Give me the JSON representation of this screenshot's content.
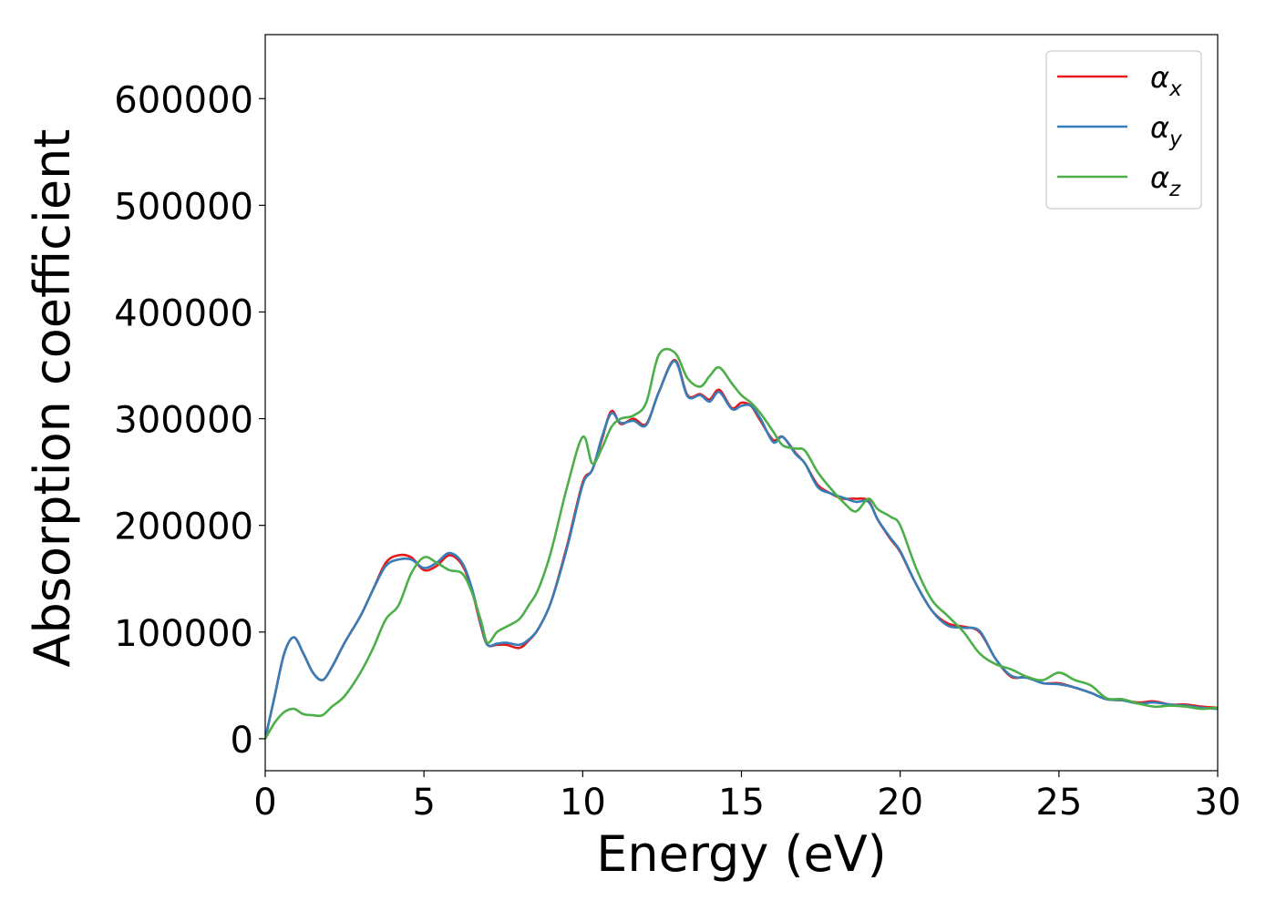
{
  "chart_data": {
    "type": "line",
    "xlabel": "Energy (eV)",
    "ylabel": "Absorption coefficient",
    "xlim": [
      0,
      30
    ],
    "ylim": [
      -30000,
      660000
    ],
    "xticks": [
      0,
      5,
      10,
      15,
      20,
      25,
      30
    ],
    "xtick_labels": [
      "0",
      "5",
      "10",
      "15",
      "20",
      "25",
      "30"
    ],
    "yticks": [
      0,
      100000,
      200000,
      300000,
      400000,
      500000,
      600000
    ],
    "ytick_labels": [
      "0",
      "100000",
      "200000",
      "300000",
      "400000",
      "500000",
      "600000"
    ],
    "grid": false,
    "legend_position": "top-right",
    "series": [
      {
        "name": "αx",
        "name_base": "α",
        "name_sub": "x",
        "color": "#e41a1c",
        "x": [
          0,
          0.3,
          0.6,
          0.9,
          1.2,
          1.5,
          1.8,
          2.1,
          2.5,
          3.0,
          3.4,
          3.8,
          4.2,
          4.6,
          5.0,
          5.4,
          5.8,
          6.2,
          6.5,
          6.8,
          7.0,
          7.3,
          7.6,
          8.0,
          8.3,
          8.6,
          9.0,
          9.5,
          10.0,
          10.3,
          10.6,
          10.9,
          11.2,
          11.6,
          12.0,
          12.4,
          12.9,
          13.3,
          13.7,
          14.0,
          14.3,
          14.7,
          15.0,
          15.3,
          15.6,
          16.0,
          16.3,
          16.7,
          17.0,
          17.4,
          17.8,
          18.2,
          18.6,
          19.0,
          19.3,
          19.7,
          20.0,
          20.5,
          21.0,
          21.5,
          22.0,
          22.5,
          23.0,
          23.5,
          24.0,
          24.5,
          25.0,
          25.5,
          26.0,
          26.5,
          27.0,
          27.5,
          28.0,
          28.5,
          29.0,
          29.5,
          30.0
        ],
        "y": [
          0,
          40000,
          80000,
          95000,
          80000,
          62000,
          55000,
          67000,
          90000,
          115000,
          140000,
          165000,
          172000,
          170000,
          158000,
          162000,
          172000,
          163000,
          140000,
          105000,
          88000,
          88000,
          88000,
          85000,
          92000,
          103000,
          128000,
          180000,
          240000,
          252000,
          280000,
          307000,
          295000,
          300000,
          295000,
          325000,
          355000,
          322000,
          323000,
          318000,
          327000,
          310000,
          315000,
          312000,
          298000,
          280000,
          283000,
          268000,
          258000,
          238000,
          230000,
          225000,
          225000,
          223000,
          205000,
          187000,
          175000,
          145000,
          120000,
          108000,
          105000,
          100000,
          75000,
          58000,
          58000,
          52000,
          52000,
          48000,
          43000,
          37000,
          36000,
          34000,
          35000,
          32000,
          32000,
          30000,
          29000
        ]
      },
      {
        "name": "αy",
        "name_base": "α",
        "name_sub": "y",
        "color": "#377eb8",
        "x": [
          0,
          0.3,
          0.6,
          0.9,
          1.2,
          1.5,
          1.8,
          2.1,
          2.5,
          3.0,
          3.4,
          3.8,
          4.2,
          4.6,
          5.0,
          5.4,
          5.8,
          6.2,
          6.5,
          6.8,
          7.0,
          7.3,
          7.6,
          8.0,
          8.3,
          8.6,
          9.0,
          9.5,
          10.0,
          10.3,
          10.6,
          10.9,
          11.2,
          11.6,
          12.0,
          12.4,
          12.9,
          13.3,
          13.7,
          14.0,
          14.3,
          14.7,
          15.0,
          15.3,
          15.6,
          16.0,
          16.3,
          16.7,
          17.0,
          17.4,
          17.8,
          18.2,
          18.6,
          19.0,
          19.3,
          19.7,
          20.0,
          20.5,
          21.0,
          21.5,
          22.0,
          22.5,
          23.0,
          23.5,
          24.0,
          24.5,
          25.0,
          25.5,
          26.0,
          26.5,
          27.0,
          27.5,
          28.0,
          28.5,
          29.0,
          29.5,
          30.0
        ],
        "y": [
          0,
          40000,
          80000,
          95000,
          80000,
          62000,
          55000,
          67000,
          90000,
          115000,
          140000,
          162000,
          168000,
          168000,
          160000,
          165000,
          174000,
          165000,
          142000,
          107000,
          88000,
          89000,
          90000,
          88000,
          93000,
          103000,
          128000,
          178000,
          238000,
          252000,
          282000,
          305000,
          296000,
          298000,
          294000,
          325000,
          354000,
          321000,
          322000,
          316000,
          325000,
          309000,
          312000,
          312000,
          300000,
          278000,
          283000,
          267000,
          258000,
          236000,
          230000,
          226000,
          222000,
          222000,
          205000,
          188000,
          176000,
          145000,
          120000,
          106000,
          104000,
          101000,
          75000,
          59000,
          57000,
          52000,
          51000,
          48000,
          43000,
          37000,
          36000,
          33000,
          34000,
          32000,
          31000,
          29000,
          28000
        ]
      },
      {
        "name": "αz",
        "name_base": "α",
        "name_sub": "z",
        "color": "#4daf4a",
        "x": [
          0,
          0.3,
          0.6,
          0.9,
          1.2,
          1.5,
          1.8,
          2.1,
          2.5,
          3.0,
          3.4,
          3.8,
          4.2,
          4.6,
          5.0,
          5.4,
          5.8,
          6.2,
          6.5,
          6.8,
          7.0,
          7.3,
          7.6,
          8.0,
          8.3,
          8.6,
          9.0,
          9.5,
          10.0,
          10.3,
          10.6,
          10.9,
          11.2,
          11.6,
          12.0,
          12.4,
          12.9,
          13.3,
          13.7,
          14.0,
          14.3,
          14.7,
          15.0,
          15.3,
          15.6,
          16.0,
          16.3,
          16.7,
          17.0,
          17.4,
          17.8,
          18.2,
          18.6,
          19.0,
          19.3,
          19.7,
          20.0,
          20.5,
          21.0,
          21.5,
          22.0,
          22.5,
          23.0,
          23.5,
          24.0,
          24.5,
          25.0,
          25.5,
          26.0,
          26.5,
          27.0,
          27.5,
          28.0,
          28.5,
          29.0,
          29.5,
          30.0
        ],
        "y": [
          0,
          15000,
          25000,
          28000,
          23000,
          22000,
          22000,
          30000,
          40000,
          62000,
          85000,
          112000,
          125000,
          155000,
          170000,
          165000,
          158000,
          155000,
          138000,
          110000,
          90000,
          100000,
          105000,
          112000,
          125000,
          140000,
          175000,
          235000,
          283000,
          258000,
          272000,
          292000,
          300000,
          303000,
          315000,
          360000,
          362000,
          338000,
          330000,
          340000,
          348000,
          333000,
          322000,
          315000,
          305000,
          288000,
          275000,
          272000,
          270000,
          250000,
          235000,
          222000,
          213000,
          225000,
          215000,
          208000,
          200000,
          160000,
          130000,
          115000,
          100000,
          80000,
          70000,
          65000,
          58000,
          55000,
          62000,
          55000,
          50000,
          38000,
          37000,
          33000,
          30000,
          31000,
          30000,
          28000,
          29000
        ]
      }
    ]
  }
}
